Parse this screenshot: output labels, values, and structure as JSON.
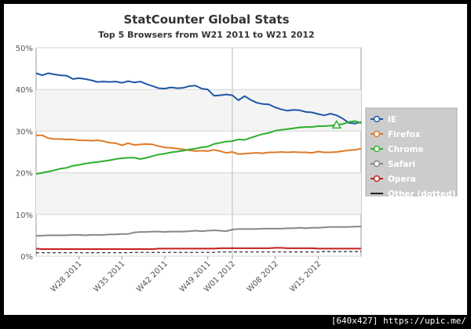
{
  "chart_data": {
    "type": "line",
    "title": "StatCounter Global Stats",
    "subtitle": "Top 5 Browsers from W21 2011 to W21 2012",
    "y_ticks": [
      "0%",
      "10%",
      "20%",
      "30%",
      "40%",
      "50%"
    ],
    "ylim": [
      0,
      50
    ],
    "x_ticks": [
      {
        "week": 7,
        "label": "W28 2011"
      },
      {
        "week": 14,
        "label": "W35 2011"
      },
      {
        "week": 21,
        "label": "W42 2011"
      },
      {
        "week": 28,
        "label": "W49 2011"
      },
      {
        "week": 32,
        "label": "W01 2012"
      },
      {
        "week": 39,
        "label": "W08 2012"
      },
      {
        "week": 46,
        "label": "W15 2012"
      }
    ],
    "grid": true,
    "legend_position": "right",
    "series": [
      {
        "name": "IE",
        "color": "#1c57a5",
        "values": [
          43.9,
          43.4,
          43.9,
          43.6,
          43.4,
          43.3,
          42.5,
          42.7,
          42.5,
          42.2,
          41.8,
          41.9,
          41.8,
          41.9,
          41.6,
          42.0,
          41.7,
          41.9,
          41.3,
          40.8,
          40.3,
          40.2,
          40.5,
          40.3,
          40.4,
          40.8,
          40.9,
          40.2,
          40.0,
          38.5,
          38.6,
          38.8,
          38.6,
          37.4,
          38.4,
          37.5,
          36.8,
          36.5,
          36.4,
          35.7,
          35.2,
          34.9,
          35.1,
          35.0,
          34.6,
          34.5,
          34.1,
          33.8,
          34.2,
          33.8,
          33.0,
          32.0,
          31.8,
          32.2
        ]
      },
      {
        "name": "Firefox",
        "color": "#de7a29",
        "values": [
          29.0,
          29.0,
          28.3,
          28.1,
          28.1,
          28.0,
          28.0,
          27.8,
          27.8,
          27.7,
          27.8,
          27.6,
          27.2,
          27.1,
          26.6,
          27.1,
          26.7,
          26.8,
          26.9,
          26.8,
          26.4,
          26.1,
          26.0,
          25.8,
          25.6,
          25.4,
          25.2,
          25.3,
          25.2,
          25.5,
          25.2,
          24.8,
          25.0,
          24.5,
          24.6,
          24.7,
          24.8,
          24.7,
          24.9,
          24.9,
          25.0,
          24.9,
          25.0,
          24.9,
          24.9,
          24.8,
          25.1,
          24.9,
          24.9,
          25.0,
          25.2,
          25.4,
          25.5,
          25.8
        ]
      },
      {
        "name": "Chrome",
        "color": "#2cb02c",
        "values": [
          19.7,
          20.0,
          20.3,
          20.6,
          21.0,
          21.2,
          21.7,
          21.9,
          22.2,
          22.4,
          22.6,
          22.8,
          23.0,
          23.3,
          23.5,
          23.6,
          23.6,
          23.3,
          23.6,
          24.0,
          24.4,
          24.6,
          24.9,
          25.1,
          25.3,
          25.6,
          25.8,
          26.1,
          26.3,
          26.9,
          27.2,
          27.5,
          27.6,
          28.0,
          27.9,
          28.4,
          28.9,
          29.3,
          29.6,
          30.1,
          30.3,
          30.5,
          30.7,
          30.9,
          31.0,
          31.0,
          31.2,
          31.2,
          31.3,
          31.5,
          31.7,
          32.2,
          32.4,
          31.9
        ]
      },
      {
        "name": "Safari",
        "color": "#888888",
        "values": [
          4.9,
          4.9,
          5.0,
          5.0,
          5.0,
          5.0,
          5.1,
          5.1,
          5.0,
          5.1,
          5.1,
          5.1,
          5.2,
          5.2,
          5.3,
          5.3,
          5.7,
          5.8,
          5.8,
          5.9,
          5.9,
          5.8,
          5.9,
          5.9,
          5.9,
          6.0,
          6.1,
          6.0,
          6.1,
          6.2,
          6.1,
          6.0,
          6.4,
          6.5,
          6.5,
          6.5,
          6.5,
          6.6,
          6.6,
          6.6,
          6.6,
          6.7,
          6.7,
          6.8,
          6.7,
          6.8,
          6.8,
          6.9,
          7.0,
          7.0,
          7.0,
          7.0,
          7.1,
          7.1
        ]
      },
      {
        "name": "Opera",
        "color": "#c41f1f",
        "values": [
          1.8,
          1.7,
          1.7,
          1.7,
          1.7,
          1.7,
          1.7,
          1.7,
          1.7,
          1.7,
          1.7,
          1.7,
          1.7,
          1.7,
          1.7,
          1.7,
          1.7,
          1.7,
          1.7,
          1.7,
          1.8,
          1.8,
          1.8,
          1.8,
          1.8,
          1.8,
          1.8,
          1.8,
          1.8,
          1.8,
          1.9,
          1.9,
          1.9,
          1.9,
          1.9,
          1.9,
          1.9,
          1.9,
          1.9,
          2.0,
          2.0,
          1.9,
          1.9,
          1.9,
          1.9,
          1.9,
          1.8,
          1.8,
          1.8,
          1.8,
          1.8,
          1.8,
          1.8,
          1.8
        ]
      },
      {
        "name": "Other (dotted)",
        "color": "#222222",
        "dashed": true,
        "values": [
          0.8,
          0.8,
          0.8,
          0.8,
          0.8,
          0.8,
          0.8,
          0.8,
          0.8,
          0.8,
          0.8,
          0.8,
          0.8,
          0.8,
          0.8,
          0.8,
          0.9,
          0.9,
          0.9,
          0.9,
          0.9,
          0.9,
          0.9,
          0.9,
          0.9,
          0.9,
          0.9,
          0.9,
          0.9,
          0.9,
          1.0,
          1.0,
          1.0,
          1.0,
          1.0,
          1.0,
          1.0,
          1.0,
          1.0,
          1.0,
          1.0,
          1.0,
          1.0,
          1.0,
          1.0,
          1.0,
          1.0,
          1.1,
          1.1,
          1.1,
          1.1,
          1.1,
          1.1,
          1.1
        ]
      }
    ]
  },
  "footer_text": "[640x427] https://upic.me/"
}
